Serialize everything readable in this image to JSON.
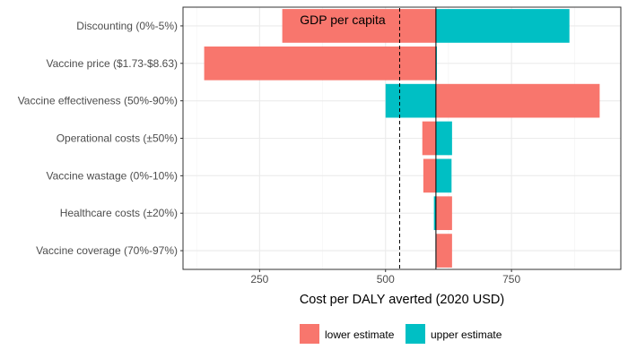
{
  "chart_data": {
    "type": "bar",
    "orientation": "horizontal",
    "subtype": "tornado",
    "baseline": 600,
    "categories": [
      "Discounting (0%-5%)",
      "Vaccine price ($1.73-$8.63)",
      "Vaccine effectiveness (50%-90%)",
      "Operational costs (±50%)",
      "Vaccine wastage (0%-10%)",
      "Healthcare costs (±20%)",
      "Vaccine coverage (70%-97%)"
    ],
    "series": [
      {
        "name": "lower estimate",
        "color": "#F8766D",
        "values": [
          295,
          140,
          925,
          573,
          575,
          632,
          632
        ]
      },
      {
        "name": "upper estimate",
        "color": "#00BFC4",
        "values": [
          865,
          602,
          500,
          632,
          631,
          596,
          600
        ]
      }
    ],
    "xlabel": "Cost per DALY averted (2020 USD)",
    "xticks": [
      250,
      500,
      750
    ],
    "xlim": [
      98,
      967
    ],
    "reference_line": {
      "value": 528,
      "label": "GDP per capita",
      "style": "dashed"
    },
    "grid": true,
    "legend_position": "bottom"
  }
}
